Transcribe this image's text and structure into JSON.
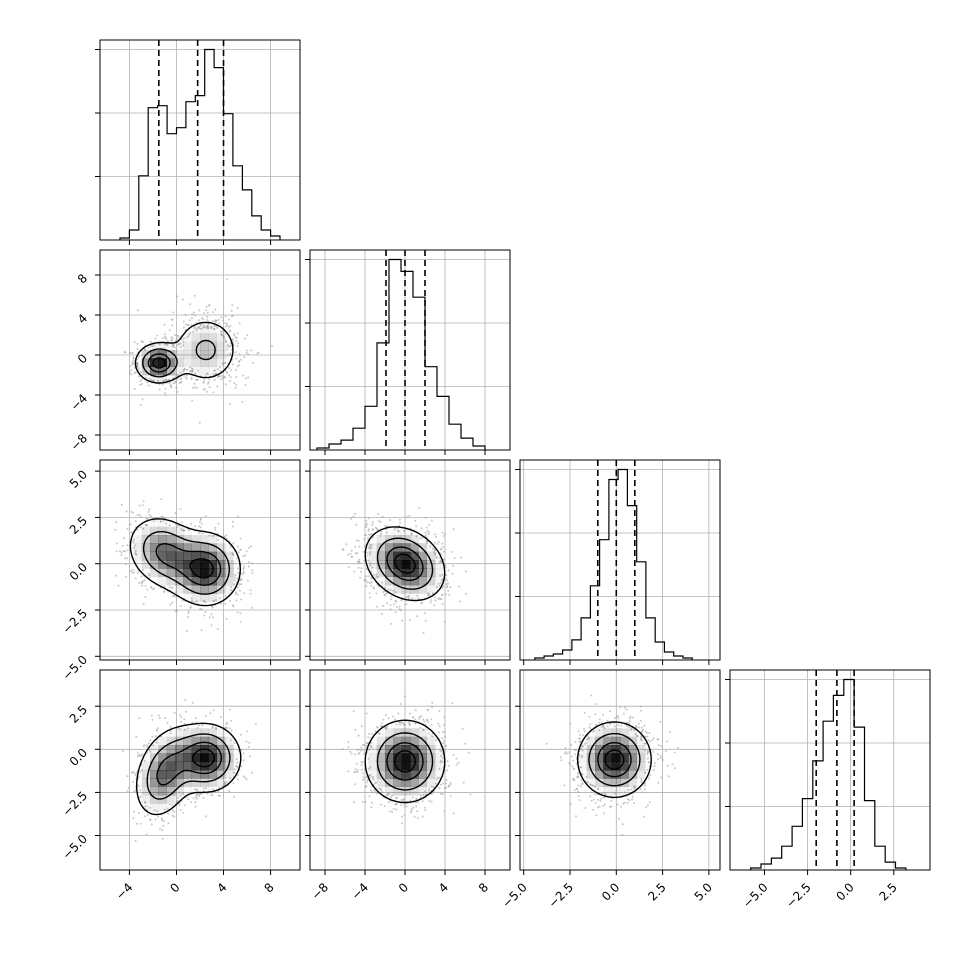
{
  "chart_data": {
    "type": "corner",
    "dimensions": 4,
    "grid": true,
    "quantile_lines": "dashed",
    "axes": [
      {
        "range": [
          -6.5,
          10.5
        ],
        "ticks": [
          -4,
          0,
          4,
          8
        ],
        "tick_labels": [
          "−4",
          "0",
          "4",
          "8"
        ]
      },
      {
        "range": [
          -9.5,
          10.5
        ],
        "ticks": [
          -8,
          -4,
          0,
          4,
          8
        ],
        "tick_labels": [
          "−8",
          "−4",
          "0",
          "4",
          "8"
        ]
      },
      {
        "range": [
          -5.2,
          5.6
        ],
        "ticks": [
          -5.0,
          -2.5,
          0.0,
          2.5,
          5.0
        ],
        "tick_labels": [
          "−5.0",
          "−2.5",
          "0.0",
          "2.5",
          "5.0"
        ]
      },
      {
        "range": [
          -7.0,
          4.6
        ],
        "ticks": [
          -5.0,
          -2.5,
          0.0,
          2.5
        ],
        "tick_labels": [
          "−5.0",
          "−2.5",
          "0.0",
          "2.5"
        ]
      }
    ],
    "histograms": [
      {
        "param": 0,
        "bins": [
          -4.8,
          -4.0,
          -3.2,
          -2.4,
          -1.6,
          -0.8,
          0.0,
          0.8,
          1.6,
          2.4,
          3.2,
          4.0,
          4.8,
          5.6,
          6.4,
          7.2,
          8.0,
          8.8
        ],
        "heights": [
          0.01,
          0.05,
          0.32,
          0.66,
          0.67,
          0.53,
          0.56,
          0.69,
          0.72,
          0.95,
          0.86,
          0.63,
          0.37,
          0.25,
          0.12,
          0.05,
          0.02
        ],
        "quantiles": [
          -1.5,
          1.8,
          4.0
        ]
      },
      {
        "param": 1,
        "bins": [
          -8.8,
          -7.6,
          -6.4,
          -5.2,
          -4.0,
          -2.8,
          -1.6,
          -0.4,
          0.8,
          2.0,
          3.2,
          4.4,
          5.6,
          6.8,
          8.0
        ],
        "heights": [
          0.01,
          0.03,
          0.05,
          0.11,
          0.22,
          0.54,
          0.96,
          0.9,
          0.77,
          0.42,
          0.27,
          0.13,
          0.06,
          0.02
        ],
        "quantiles": [
          -1.9,
          0.0,
          2.0
        ]
      },
      {
        "param": 2,
        "bins": [
          -4.4,
          -3.9,
          -3.4,
          -2.9,
          -2.4,
          -1.9,
          -1.4,
          -0.9,
          -0.4,
          0.1,
          0.6,
          1.1,
          1.6,
          2.1,
          2.6,
          3.1,
          3.6,
          4.1
        ],
        "heights": [
          0.01,
          0.02,
          0.03,
          0.05,
          0.1,
          0.21,
          0.37,
          0.6,
          0.9,
          0.95,
          0.77,
          0.49,
          0.21,
          0.09,
          0.04,
          0.02,
          0.01
        ],
        "quantiles": [
          -1.0,
          0.0,
          1.0
        ]
      },
      {
        "param": 3,
        "bins": [
          -5.8,
          -5.2,
          -4.6,
          -4.0,
          -3.4,
          -2.8,
          -2.2,
          -1.6,
          -1.0,
          -0.4,
          0.2,
          0.8,
          1.4,
          2.0,
          2.6,
          3.2
        ],
        "heights": [
          0.01,
          0.03,
          0.06,
          0.12,
          0.22,
          0.36,
          0.55,
          0.75,
          0.88,
          0.96,
          0.72,
          0.35,
          0.12,
          0.04,
          0.01
        ],
        "quantiles": [
          -2.0,
          -0.8,
          0.2
        ]
      }
    ],
    "joint_density": [
      {
        "x_param": 0,
        "y_param": 1,
        "components": [
          {
            "weight": 0.55,
            "mean": [
              2.5,
              0.5
            ],
            "sd": [
              1.5,
              1.8
            ],
            "rho": 0.0
          },
          {
            "weight": 0.45,
            "mean": [
              -1.5,
              -0.8
            ],
            "sd": [
              1.0,
              1.0
            ],
            "rho": 0.0
          }
        ]
      },
      {
        "x_param": 0,
        "y_param": 2,
        "components": [
          {
            "weight": 0.55,
            "mean": [
              2.5,
              -0.3
            ],
            "sd": [
              1.5,
              1.0
            ],
            "rho": 0.0
          },
          {
            "weight": 0.45,
            "mean": [
              -1.0,
              0.6
            ],
            "sd": [
              1.6,
              1.0
            ],
            "rho": -0.2
          }
        ]
      },
      {
        "x_param": 1,
        "y_param": 2,
        "components": [
          {
            "weight": 1.0,
            "mean": [
              0.0,
              0.0
            ],
            "sd": [
              2.0,
              1.0
            ],
            "rho": -0.25
          }
        ]
      },
      {
        "x_param": 0,
        "y_param": 3,
        "components": [
          {
            "weight": 0.55,
            "mean": [
              2.5,
              -0.5
            ],
            "sd": [
              1.5,
              1.0
            ],
            "rho": 0.0
          },
          {
            "weight": 0.45,
            "mean": [
              -1.0,
              -1.4
            ],
            "sd": [
              1.3,
              1.3
            ],
            "rho": 0.3
          }
        ]
      },
      {
        "x_param": 1,
        "y_param": 3,
        "components": [
          {
            "weight": 1.0,
            "mean": [
              0.0,
              -0.7
            ],
            "sd": [
              2.0,
              1.2
            ],
            "rho": 0.0
          }
        ]
      },
      {
        "x_param": 2,
        "y_param": 3,
        "components": [
          {
            "weight": 1.0,
            "mean": [
              -0.1,
              -0.6
            ],
            "sd": [
              1.0,
              1.1
            ],
            "rho": 0.0
          }
        ]
      }
    ],
    "colors": {
      "line": "#000000",
      "grid": "#b0b0b0",
      "density": "#000000",
      "points": "#9a9a9a"
    }
  }
}
